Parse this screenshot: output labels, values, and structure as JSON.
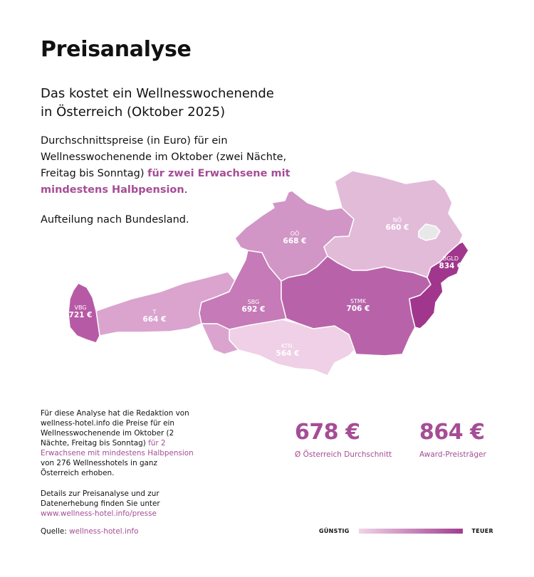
{
  "title": "Preisanalyse",
  "subtitle_line1": "Das kostet ein Wellnesswochenende",
  "subtitle_line2": "in Österreich (Oktober 2025)",
  "description": {
    "text": "Durchschnittspreise (in Euro) für ein Wellnesswochenende im Oktober (zwei Nächte, Freitag bis Sonntag) ",
    "highlight": "für zwei Erwachsene mit mindestens Halbpension",
    "end": "."
  },
  "split_note": "Aufteilung nach Bundesland.",
  "chart_data": {
    "type": "heatmap",
    "unit": "€",
    "regions": [
      {
        "abbr": "VBG",
        "value": 721,
        "value_label": "721 €",
        "color": "#b75aa6"
      },
      {
        "abbr": "T",
        "value": 664,
        "value_label": "664 €",
        "color": "#daa4cf"
      },
      {
        "abbr": "SBG",
        "value": 692,
        "value_label": "692 €",
        "color": "#c67ab8"
      },
      {
        "abbr": "OÖ",
        "value": 668,
        "value_label": "668 €",
        "color": "#d196c6"
      },
      {
        "abbr": "NÖ",
        "value": 660,
        "value_label": "660 €",
        "color": "#e2bbd9"
      },
      {
        "abbr": "STMK",
        "value": 706,
        "value_label": "706 €",
        "color": "#b863a9"
      },
      {
        "abbr": "KTN.",
        "value": 564,
        "value_label": "564 €",
        "color": "#efd0e6"
      },
      {
        "abbr": "BGLD",
        "value": 834,
        "value_label": "834 €",
        "color": "#a0378d"
      }
    ],
    "legend": {
      "low": "GÜNSTIG",
      "high": "TEUER",
      "low_color": "#f1d4e7",
      "high_color": "#a03d8f"
    }
  },
  "kpis": [
    {
      "value": "678 €",
      "label": "Ø Österreich Durchschnitt"
    },
    {
      "value": "864 €",
      "label": "Award-Preisträger"
    }
  ],
  "methodology": {
    "text": "Für diese Analyse hat die Redaktion von wellness-hotel.info die Preise für ein Wellnesswochenende im Oktober (2 Nächte, Freitag bis Sonntag) ",
    "highlight": "für 2 Erwachsene mit mindestens Halbpension",
    "end": " von 276 Wellnesshotels in ganz Österreich erhoben."
  },
  "details": {
    "text": "Details zur Preisanalyse und zur Datenerhebung finden Sie unter ",
    "link": "www.wellness-hotel.info/presse"
  },
  "source": {
    "label": "Quelle: ",
    "link": "wellness-hotel.info"
  },
  "colors": {
    "accent": "#a64d96",
    "vienna": "#e8e8e8"
  }
}
